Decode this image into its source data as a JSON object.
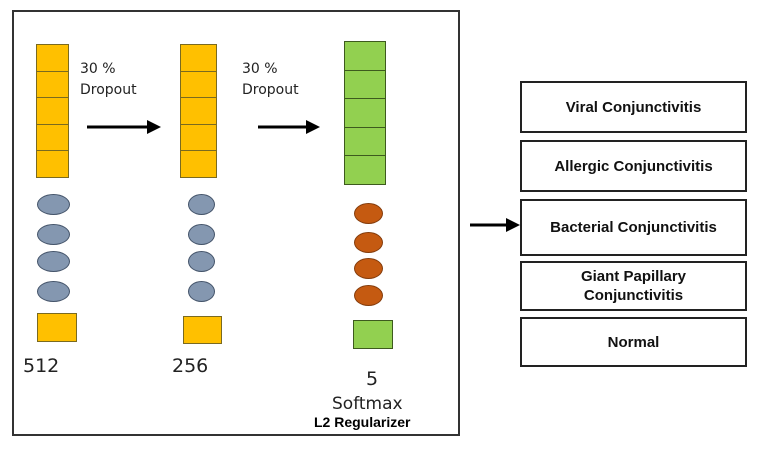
{
  "layers": [
    {
      "units": "512",
      "dropout_value": "30 %",
      "dropout_word": "Dropout"
    },
    {
      "units": "256",
      "dropout_value": "30 %",
      "dropout_word": "Dropout"
    },
    {
      "units": "5",
      "activation": "Softmax",
      "regularizer": "L2 Regularizer"
    }
  ],
  "classes": [
    "Viral Conjunctivitis",
    "Allergic Conjunctivitis",
    "Bacterial Conjunctivitis",
    "Giant Papillary Conjunctivitis",
    "Normal"
  ],
  "colors": {
    "dense_units": "#ffc000",
    "output_units": "#92d050",
    "hidden_nodes": "#8497b0",
    "output_nodes": "#c55a11"
  },
  "icons": [
    "arrow-right-icon",
    "arrow-right-icon",
    "arrow-right-icon"
  ]
}
